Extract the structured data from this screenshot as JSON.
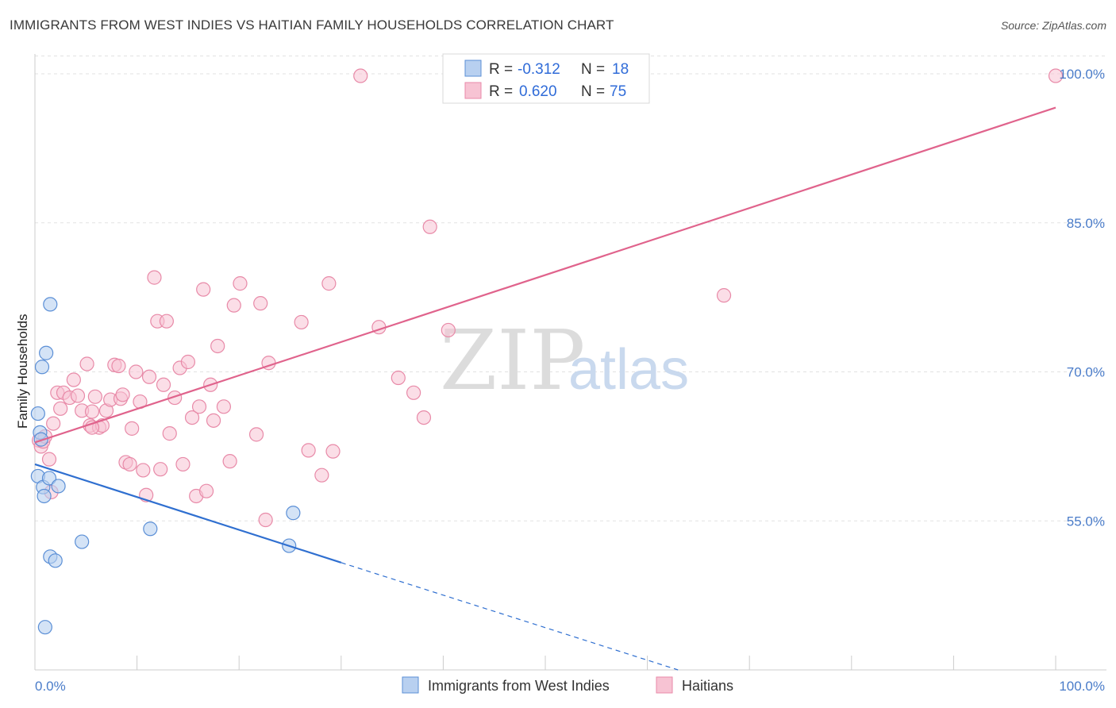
{
  "title": "IMMIGRANTS FROM WEST INDIES VS HAITIAN FAMILY HOUSEHOLDS CORRELATION CHART",
  "source": "Source: ZipAtlas.com",
  "watermark": {
    "zip": "ZIP",
    "atlas": "atlas"
  },
  "colors": {
    "blue": "#5b8fd6",
    "blue_fill": "#b8d0f0",
    "blue_line": "#2f6fd0",
    "pink": "#e88aa8",
    "pink_fill": "#f7c3d3",
    "pink_line": "#e0638c",
    "grid": "#e2e2e2",
    "axis": "#cccccc"
  },
  "legend": {
    "rows": [
      {
        "r_label": "R =",
        "r_value": "-0.312",
        "n_label": "N =",
        "n_value": "18"
      },
      {
        "r_label": "R =",
        "r_value": "0.620",
        "n_label": "N =",
        "n_value": "75"
      }
    ]
  },
  "chart_data": {
    "type": "scatter",
    "title": "IMMIGRANTS FROM WEST INDIES VS HAITIAN FAMILY HOUSEHOLDS CORRELATION CHART",
    "xlabel": "",
    "ylabel": "Family Households",
    "xlim": [
      0,
      100
    ],
    "ylim": [
      40,
      102
    ],
    "x_tick_labels": [
      "0.0%",
      "100.0%"
    ],
    "y_ticks": [
      55,
      70,
      85,
      100
    ],
    "y_tick_labels": [
      "55.0%",
      "70.0%",
      "85.0%",
      "100.0%"
    ],
    "grid": true,
    "legend_position": "top-center",
    "series": [
      {
        "name": "Immigrants from West Indies",
        "color": "#5b8fd6",
        "points": [
          [
            0.3,
            65.8
          ],
          [
            0.5,
            63.9
          ],
          [
            0.6,
            63.2
          ],
          [
            0.3,
            59.5
          ],
          [
            0.8,
            58.4
          ],
          [
            0.9,
            57.5
          ],
          [
            0.7,
            70.5
          ],
          [
            1.1,
            71.9
          ],
          [
            1.5,
            76.8
          ],
          [
            1.4,
            59.3
          ],
          [
            2.3,
            58.5
          ],
          [
            1.5,
            51.4
          ],
          [
            2.0,
            51.0
          ],
          [
            4.6,
            52.9
          ],
          [
            11.3,
            54.2
          ],
          [
            24.9,
            52.5
          ],
          [
            25.3,
            55.8
          ],
          [
            1.0,
            44.3
          ]
        ],
        "trend": {
          "x": [
            0,
            30
          ],
          "y": [
            60.7,
            50.8
          ],
          "dashed_to": [
            63,
            40
          ]
        }
      },
      {
        "name": "Haitians",
        "color": "#e88aa8",
        "points": [
          [
            0.4,
            63.1
          ],
          [
            0.6,
            62.5
          ],
          [
            0.8,
            63.0
          ],
          [
            1.0,
            63.5
          ],
          [
            1.4,
            61.2
          ],
          [
            1.6,
            57.9
          ],
          [
            1.8,
            64.8
          ],
          [
            2.2,
            67.9
          ],
          [
            2.5,
            66.3
          ],
          [
            2.8,
            67.9
          ],
          [
            3.4,
            67.4
          ],
          [
            3.8,
            69.2
          ],
          [
            4.2,
            67.6
          ],
          [
            4.6,
            66.1
          ],
          [
            5.1,
            70.8
          ],
          [
            5.4,
            64.6
          ],
          [
            5.6,
            66.0
          ],
          [
            5.9,
            67.5
          ],
          [
            6.3,
            64.4
          ],
          [
            6.6,
            64.6
          ],
          [
            7.0,
            66.1
          ],
          [
            7.4,
            67.2
          ],
          [
            7.8,
            70.7
          ],
          [
            8.2,
            70.6
          ],
          [
            8.4,
            67.3
          ],
          [
            8.6,
            67.7
          ],
          [
            8.9,
            60.9
          ],
          [
            9.3,
            60.7
          ],
          [
            9.5,
            64.3
          ],
          [
            9.9,
            70.0
          ],
          [
            10.3,
            67.0
          ],
          [
            10.6,
            60.1
          ],
          [
            10.9,
            57.6
          ],
          [
            11.2,
            69.5
          ],
          [
            11.7,
            79.5
          ],
          [
            12.0,
            75.1
          ],
          [
            12.3,
            60.2
          ],
          [
            12.6,
            68.7
          ],
          [
            12.9,
            75.1
          ],
          [
            13.2,
            63.8
          ],
          [
            13.7,
            67.4
          ],
          [
            14.2,
            70.4
          ],
          [
            14.5,
            60.7
          ],
          [
            15.0,
            71.0
          ],
          [
            15.4,
            65.4
          ],
          [
            15.8,
            57.5
          ],
          [
            16.1,
            66.5
          ],
          [
            16.5,
            78.3
          ],
          [
            16.8,
            58.0
          ],
          [
            17.2,
            68.7
          ],
          [
            17.5,
            65.1
          ],
          [
            17.9,
            72.6
          ],
          [
            18.5,
            66.5
          ],
          [
            19.1,
            61.0
          ],
          [
            19.5,
            76.7
          ],
          [
            20.1,
            78.9
          ],
          [
            21.7,
            63.7
          ],
          [
            22.1,
            76.9
          ],
          [
            22.6,
            55.1
          ],
          [
            22.9,
            70.9
          ],
          [
            26.1,
            75.0
          ],
          [
            26.8,
            62.1
          ],
          [
            28.1,
            59.6
          ],
          [
            28.8,
            78.9
          ],
          [
            29.2,
            62.0
          ],
          [
            31.9,
            99.8
          ],
          [
            33.7,
            74.5
          ],
          [
            35.6,
            69.4
          ],
          [
            37.1,
            67.9
          ],
          [
            38.1,
            65.4
          ],
          [
            38.7,
            84.6
          ],
          [
            40.5,
            74.2
          ],
          [
            67.5,
            77.7
          ],
          [
            100.0,
            99.8
          ],
          [
            5.6,
            64.4
          ]
        ],
        "trend": {
          "x": [
            0,
            100
          ],
          "y": [
            62.9,
            96.6
          ]
        }
      }
    ]
  }
}
